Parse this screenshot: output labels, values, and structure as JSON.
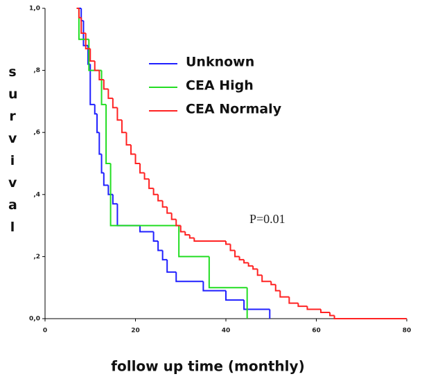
{
  "chart_data": {
    "type": "step",
    "x_label": "follow up time (monthly)",
    "y_label": "survival",
    "annotation": "P=0.01",
    "xlim": [
      0,
      80
    ],
    "xticks": [
      0,
      20,
      40,
      60,
      80
    ],
    "ylim": [
      0,
      1
    ],
    "yticks": [
      {
        "value": 0,
        "label": "0,0"
      },
      {
        "value": 0.2,
        "label": ",2"
      },
      {
        "value": 0.4,
        "label": ",4"
      },
      {
        "value": 0.6,
        "label": ",6"
      },
      {
        "value": 0.8,
        "label": ",8"
      },
      {
        "value": 1,
        "label": "1,0"
      }
    ],
    "series": [
      {
        "name": "Unknown",
        "color": "#1f1fff",
        "x": [
          7,
          8,
          8.5,
          9.5,
          10,
          11,
          11.5,
          12,
          12.5,
          13,
          14,
          15,
          16,
          21,
          24,
          25,
          26,
          27,
          29,
          35,
          40,
          44,
          49.7
        ],
        "values": [
          1.0,
          0.96,
          0.88,
          0.82,
          0.69,
          0.66,
          0.6,
          0.53,
          0.47,
          0.43,
          0.4,
          0.37,
          0.3,
          0.28,
          0.25,
          0.22,
          0.19,
          0.15,
          0.12,
          0.09,
          0.06,
          0.03,
          0.0
        ]
      },
      {
        "name": "CEA High",
        "color": "#22dd22",
        "x": [
          7,
          7.5,
          9.7,
          12.5,
          13.5,
          14.5,
          29.6,
          36.3,
          44.7
        ],
        "values": [
          1.0,
          0.9,
          0.8,
          0.69,
          0.5,
          0.3,
          0.2,
          0.1,
          0.0
        ]
      },
      {
        "name": "CEA Normaly",
        "color": "#ff2222",
        "x": [
          7,
          7.5,
          8,
          9,
          10,
          11,
          12,
          13,
          14,
          15,
          16,
          17,
          18,
          19,
          20,
          21,
          22,
          23,
          24,
          25,
          26,
          27,
          28,
          29,
          30,
          31,
          32,
          33,
          40,
          41,
          42,
          43,
          44,
          45,
          46,
          47,
          48,
          50,
          51,
          52,
          54,
          56,
          58,
          61,
          63,
          64,
          80
        ],
        "values": [
          1.0,
          0.97,
          0.92,
          0.87,
          0.83,
          0.8,
          0.77,
          0.74,
          0.71,
          0.68,
          0.64,
          0.6,
          0.56,
          0.53,
          0.5,
          0.47,
          0.45,
          0.42,
          0.4,
          0.38,
          0.36,
          0.34,
          0.32,
          0.3,
          0.28,
          0.27,
          0.26,
          0.25,
          0.24,
          0.22,
          0.2,
          0.19,
          0.18,
          0.17,
          0.16,
          0.14,
          0.12,
          0.11,
          0.09,
          0.07,
          0.05,
          0.04,
          0.03,
          0.02,
          0.01,
          0.0,
          0.0
        ]
      }
    ]
  }
}
